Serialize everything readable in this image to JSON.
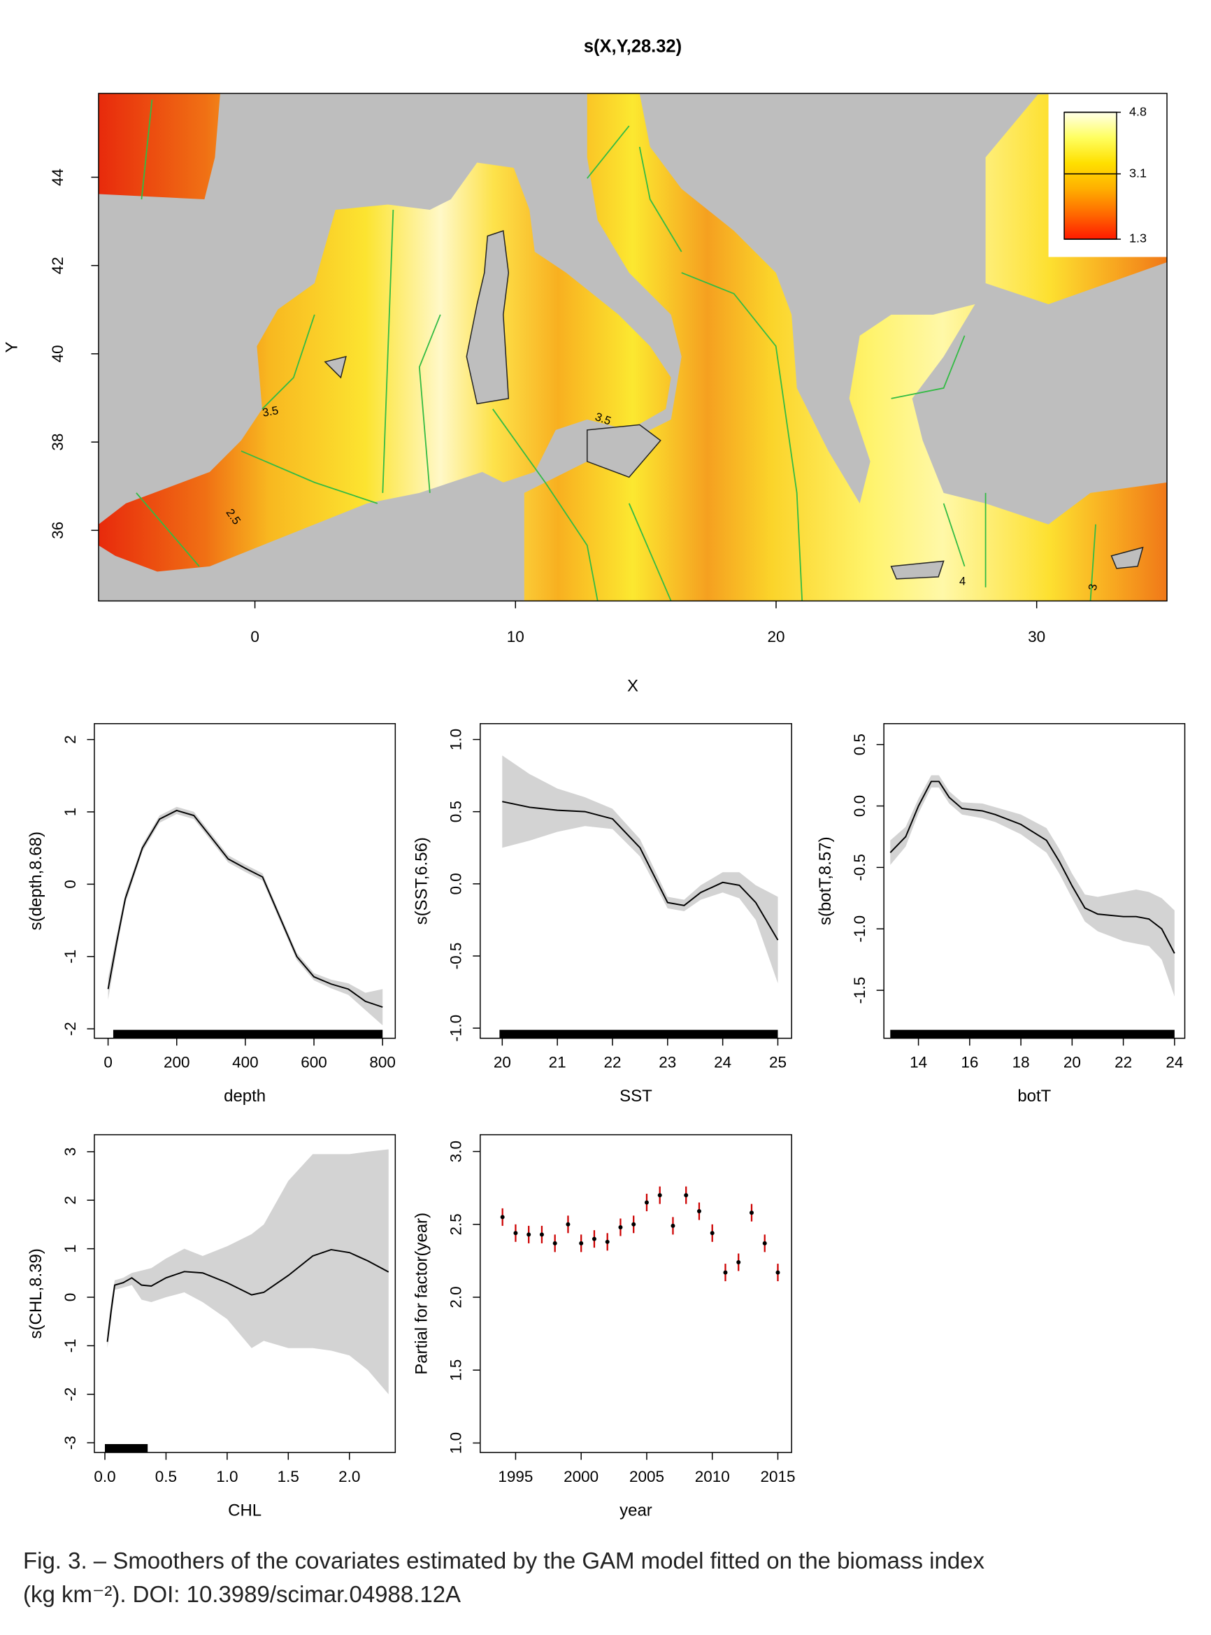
{
  "chart_data": [
    {
      "type": "map",
      "title": "s(X,Y,28.32)",
      "x_label": "X",
      "y_label": "Y",
      "xlim": [
        -6,
        35
      ],
      "ylim": [
        34.4,
        45.9
      ],
      "xticks": [
        0,
        10,
        20,
        30
      ],
      "yticks": [
        36,
        38,
        40,
        42,
        44
      ],
      "legend": {
        "position": "topright",
        "zlim": [
          1.3,
          4.8
        ],
        "ticks": [
          4.8,
          3.1,
          1.3
        ],
        "colors": [
          "#ff1a00",
          "#ff6a00",
          "#ffb000",
          "#ffe000",
          "#ffff60",
          "#ffffe8"
        ]
      },
      "contour_labels": [
        3.5,
        3.5,
        2.5,
        4,
        3
      ],
      "contour_color": "#33bb44"
    },
    {
      "type": "smooth",
      "x_label": "depth",
      "y_label": "s(depth,8.68)",
      "xlim": [
        -40,
        837
      ],
      "ylim": [
        -2.13,
        2.22
      ],
      "xticks": [
        0,
        200,
        400,
        600,
        800
      ],
      "yticks": [
        -2,
        -1,
        0,
        1,
        2
      ],
      "x": [
        0,
        25,
        50,
        100,
        150,
        200,
        250,
        300,
        350,
        400,
        450,
        500,
        550,
        600,
        650,
        700,
        750,
        800
      ],
      "values": [
        -1.45,
        -0.8,
        -0.2,
        0.5,
        0.9,
        1.02,
        0.95,
        0.65,
        0.35,
        0.22,
        0.1,
        -0.45,
        -1.0,
        -1.28,
        -1.38,
        -1.45,
        -1.62,
        -1.7
      ],
      "upper": [
        -1.3,
        -0.7,
        -0.13,
        0.55,
        0.95,
        1.07,
        1.0,
        0.7,
        0.4,
        0.27,
        0.15,
        -0.4,
        -0.95,
        -1.23,
        -1.32,
        -1.37,
        -1.5,
        -1.45
      ],
      "lower": [
        -1.6,
        -0.9,
        -0.27,
        0.45,
        0.85,
        0.97,
        0.9,
        0.6,
        0.3,
        0.17,
        0.05,
        -0.5,
        -1.05,
        -1.33,
        -1.44,
        -1.53,
        -1.74,
        -1.95
      ],
      "rug": [
        15,
        800
      ],
      "color": "#000000",
      "band_color": "#d3d3d3"
    },
    {
      "type": "smooth",
      "x_label": "SST",
      "y_label": "s(SST,6.56)",
      "xlim": [
        19.6,
        25.25
      ],
      "ylim": [
        -1.07,
        1.11
      ],
      "xticks": [
        20,
        21,
        22,
        23,
        24,
        25
      ],
      "yticks": [
        {
          "value": -1,
          "label": "-1.0"
        },
        -0.5,
        {
          "value": 0,
          "label": "0.0"
        },
        0.5,
        {
          "value": 1,
          "label": "1.0"
        }
      ],
      "x": [
        20,
        20.5,
        21,
        21.5,
        22,
        22.5,
        23,
        23.3,
        23.6,
        24,
        24.3,
        24.6,
        25
      ],
      "values": [
        0.57,
        0.53,
        0.51,
        0.5,
        0.45,
        0.25,
        -0.13,
        -0.15,
        -0.06,
        0.01,
        -0.01,
        -0.13,
        -0.39
      ],
      "upper": [
        0.89,
        0.76,
        0.66,
        0.6,
        0.52,
        0.31,
        -0.09,
        -0.11,
        -0.01,
        0.08,
        0.08,
        -0.01,
        -0.09
      ],
      "lower": [
        0.25,
        0.3,
        0.36,
        0.4,
        0.38,
        0.19,
        -0.17,
        -0.19,
        -0.11,
        -0.06,
        -0.1,
        -0.25,
        -0.69
      ],
      "rug": [
        19.95,
        25
      ],
      "color": "#000000",
      "band_color": "#d3d3d3"
    },
    {
      "type": "smooth",
      "x_label": "botT",
      "y_label": "s(botT,8.57)",
      "xlim": [
        12.65,
        24.4
      ],
      "ylim": [
        -1.89,
        0.67
      ],
      "xticks": [
        14,
        16,
        18,
        20,
        22,
        24
      ],
      "yticks": [
        -1.5,
        {
          "value": -1,
          "label": "-1.0"
        },
        -0.5,
        {
          "value": 0,
          "label": "0.0"
        },
        0.5
      ],
      "x": [
        12.9,
        13.5,
        14,
        14.5,
        14.8,
        15.2,
        15.7,
        16.5,
        17,
        18,
        19,
        19.5,
        20,
        20.5,
        21,
        22,
        22.5,
        23,
        23.5,
        24
      ],
      "values": [
        -0.38,
        -0.25,
        0.0,
        0.2,
        0.2,
        0.07,
        -0.02,
        -0.04,
        -0.07,
        -0.15,
        -0.28,
        -0.45,
        -0.65,
        -0.83,
        -0.88,
        -0.9,
        -0.9,
        -0.92,
        -1.0,
        -1.2
      ],
      "upper": [
        -0.28,
        -0.17,
        0.06,
        0.25,
        0.25,
        0.12,
        0.03,
        0.02,
        -0.01,
        -0.07,
        -0.18,
        -0.35,
        -0.55,
        -0.72,
        -0.74,
        -0.7,
        -0.68,
        -0.7,
        -0.75,
        -0.85
      ],
      "lower": [
        -0.48,
        -0.33,
        -0.06,
        0.15,
        0.15,
        0.02,
        -0.07,
        -0.1,
        -0.13,
        -0.23,
        -0.38,
        -0.55,
        -0.75,
        -0.94,
        -1.02,
        -1.1,
        -1.12,
        -1.14,
        -1.25,
        -1.55
      ],
      "rug": [
        12.9,
        24
      ],
      "color": "#000000",
      "band_color": "#d3d3d3"
    },
    {
      "type": "smooth",
      "x_label": "CHL",
      "y_label": "s(CHL,8.39)",
      "xlim": [
        -0.086,
        2.375
      ],
      "ylim": [
        -3.2,
        3.35
      ],
      "xticks": [
        {
          "value": 0,
          "label": "0.0"
        },
        0.5,
        {
          "value": 1,
          "label": "1.0"
        },
        1.5,
        {
          "value": 2,
          "label": "2.0"
        }
      ],
      "yticks": [
        -3,
        -2,
        -1,
        0,
        1,
        2,
        3
      ],
      "x": [
        0.02,
        0.05,
        0.08,
        0.15,
        0.22,
        0.3,
        0.38,
        0.5,
        0.65,
        0.8,
        1.0,
        1.2,
        1.3,
        1.5,
        1.7,
        1.85,
        2.0,
        2.15,
        2.32
      ],
      "values": [
        -0.92,
        -0.3,
        0.25,
        0.3,
        0.4,
        0.25,
        0.23,
        0.4,
        0.53,
        0.5,
        0.3,
        0.05,
        0.1,
        0.45,
        0.85,
        0.98,
        0.92,
        0.75,
        0.52
      ],
      "upper": [
        -0.75,
        -0.1,
        0.35,
        0.4,
        0.5,
        0.55,
        0.6,
        0.8,
        1.0,
        0.85,
        1.05,
        1.3,
        1.5,
        2.4,
        2.95,
        2.95,
        2.95,
        3.0,
        3.05
      ],
      "lower": [
        -1.05,
        -0.5,
        0.15,
        0.2,
        0.25,
        -0.05,
        -0.1,
        0.0,
        0.1,
        -0.1,
        -0.45,
        -1.05,
        -0.9,
        -1.05,
        -1.05,
        -1.1,
        -1.2,
        -1.5,
        -2.0
      ],
      "rug": [
        0,
        0.35
      ],
      "color": "#000000",
      "band_color": "#d3d3d3"
    },
    {
      "type": "errorbar",
      "x_label": "year",
      "y_label": "Partial for factor(year)",
      "xlim": [
        1992.3,
        2016.05
      ],
      "ylim": [
        0.935,
        3.115
      ],
      "xticks": [
        1995,
        2000,
        2005,
        2010,
        2015
      ],
      "yticks": [
        {
          "value": 1,
          "label": "1.0"
        },
        1.5,
        {
          "value": 2,
          "label": "2.0"
        },
        2.5,
        {
          "value": 3,
          "label": "3.0"
        }
      ],
      "x": [
        1994,
        1995,
        1996,
        1997,
        1998,
        1999,
        2000,
        2001,
        2002,
        2003,
        2004,
        2005,
        2006,
        2007,
        2008,
        2009,
        2010,
        2011,
        2012,
        2013,
        2014,
        2015
      ],
      "values": [
        2.55,
        2.44,
        2.43,
        2.43,
        2.37,
        2.5,
        2.37,
        2.4,
        2.38,
        2.48,
        2.5,
        2.65,
        2.7,
        2.49,
        2.7,
        2.59,
        2.44,
        2.17,
        2.24,
        2.58,
        2.37,
        2.17
      ],
      "errors": [
        0.06,
        0.06,
        0.06,
        0.06,
        0.06,
        0.06,
        0.06,
        0.06,
        0.06,
        0.06,
        0.06,
        0.06,
        0.06,
        0.06,
        0.06,
        0.06,
        0.06,
        0.06,
        0.06,
        0.06,
        0.06,
        0.06
      ],
      "color": "#cc0000",
      "point_color": "#000000"
    }
  ],
  "caption": [
    "Fig. 3. – Smoothers of the covariates estimated by the GAM model fitted on the biomass index",
    "(kg km⁻²). DOI: 10.3989/scimar.04988.12A"
  ]
}
